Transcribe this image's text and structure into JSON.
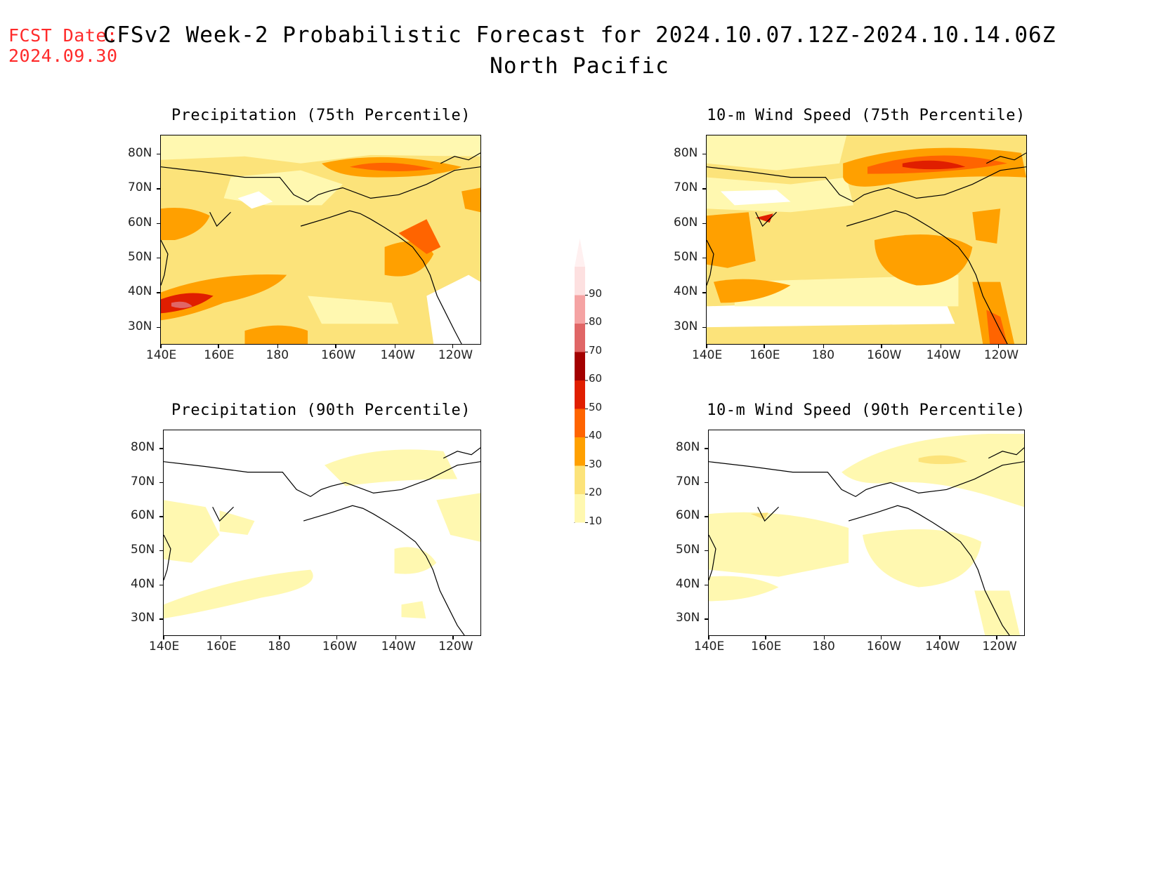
{
  "header": {
    "fcst_label": "FCST Date:",
    "fcst_date": "2024.09.30",
    "title": "CFSv2 Week-2 Probabilistic Forecast for 2024.10.07.12Z-2024.10.14.06Z",
    "region": "North Pacific"
  },
  "axes": {
    "lat_labels": [
      "80N",
      "70N",
      "60N",
      "50N",
      "40N",
      "30N"
    ],
    "lon_labels": [
      "140E",
      "160E",
      "180",
      "160W",
      "140W",
      "120W"
    ]
  },
  "panels": [
    {
      "id": "precip-75",
      "title": "Precipitation (75th Percentile)"
    },
    {
      "id": "wind-75",
      "title": "10-m Wind Speed (75th Percentile)"
    },
    {
      "id": "precip-90",
      "title": "Precipitation (90th Percentile)"
    },
    {
      "id": "wind-90",
      "title": "10-m Wind Speed (90th Percentile)"
    }
  ],
  "colorbar": {
    "levels": [
      "90",
      "80",
      "70",
      "60",
      "50",
      "40",
      "30",
      "20",
      "10"
    ],
    "colors": [
      "#fde0e0",
      "#f5a3a3",
      "#e06666",
      "#a30000",
      "#e01e00",
      "#ff6400",
      "#ffa000",
      "#fce37a",
      "#fff8b0"
    ]
  }
}
